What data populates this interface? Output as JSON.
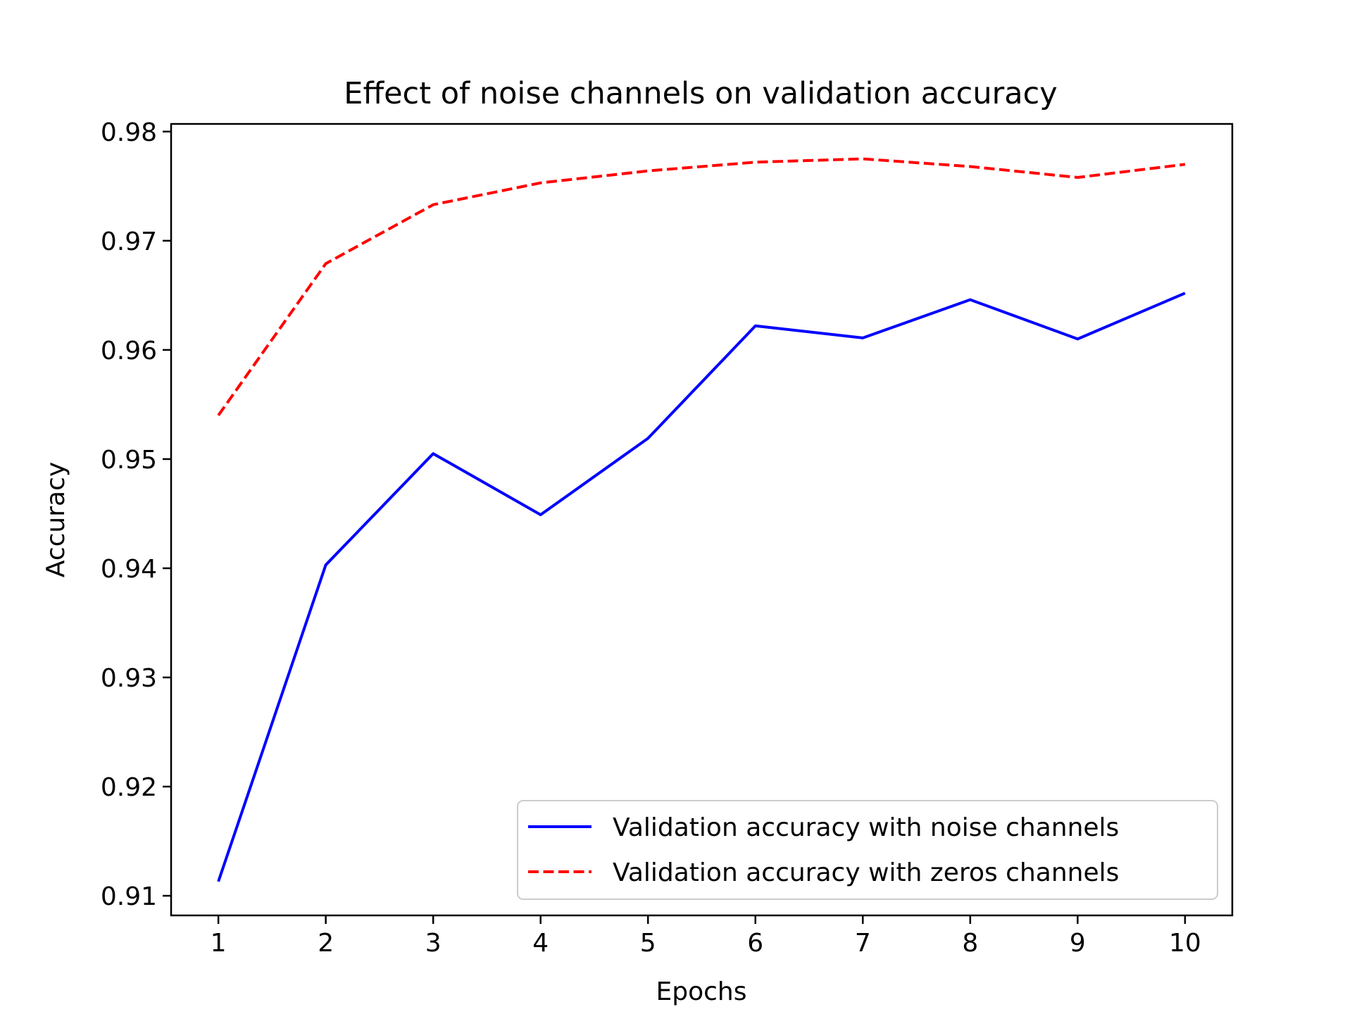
{
  "chart_data": {
    "type": "line",
    "title": "Effect of noise channels on validation accuracy",
    "xlabel": "Epochs",
    "ylabel": "Accuracy",
    "x": [
      1,
      2,
      3,
      4,
      5,
      6,
      7,
      8,
      9,
      10
    ],
    "x_ticks": [
      "1",
      "2",
      "3",
      "4",
      "5",
      "6",
      "7",
      "8",
      "9",
      "10"
    ],
    "y_ticks": [
      "0.91",
      "0.92",
      "0.93",
      "0.94",
      "0.95",
      "0.96",
      "0.97",
      "0.98"
    ],
    "y_tick_values": [
      0.91,
      0.92,
      0.93,
      0.94,
      0.95,
      0.96,
      0.97,
      0.98
    ],
    "xlim": [
      0.56,
      10.44
    ],
    "ylim": [
      0.9082,
      0.9807
    ],
    "grid": false,
    "legend_position": "lower-right",
    "series": [
      {
        "name": "Validation accuracy with noise channels",
        "color": "#0000ff",
        "style": "solid",
        "values": [
          0.9113,
          0.9403,
          0.9505,
          0.9449,
          0.9519,
          0.9622,
          0.9611,
          0.9646,
          0.961,
          0.9652
        ]
      },
      {
        "name": "Validation accuracy with zeros channels",
        "color": "#ff0000",
        "style": "dashed",
        "values": [
          0.954,
          0.9679,
          0.9733,
          0.9753,
          0.9764,
          0.9772,
          0.9775,
          0.9768,
          0.9758,
          0.977
        ]
      }
    ]
  }
}
